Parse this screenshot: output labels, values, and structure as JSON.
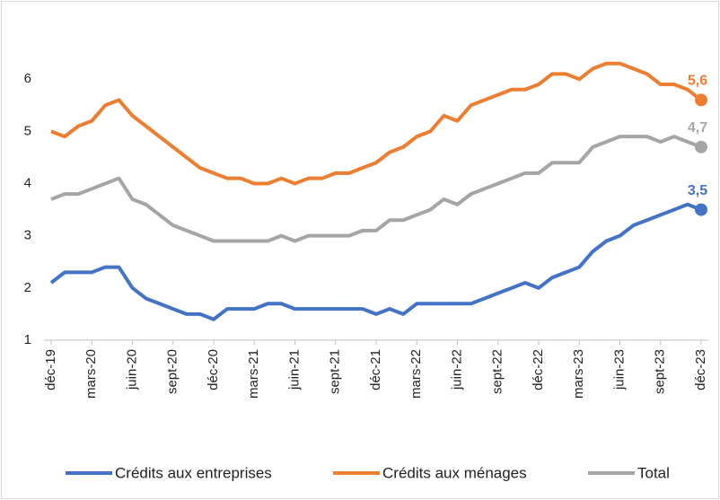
{
  "chart_data": {
    "type": "line",
    "categories": [
      "déc-19",
      null,
      null,
      "mars-20",
      null,
      null,
      "juin-20",
      null,
      null,
      "sept-20",
      null,
      null,
      "déc-20",
      null,
      null,
      "mars-21",
      null,
      null,
      "juin-21",
      null,
      null,
      "sept-21",
      null,
      null,
      "déc-21",
      null,
      null,
      "mars-22",
      null,
      null,
      "juin-22",
      null,
      null,
      "sept-22",
      null,
      null,
      "déc-22",
      null,
      null,
      "mars-23",
      null,
      null,
      "juin-23",
      null,
      null,
      "sept-23",
      null,
      null,
      "déc-23"
    ],
    "series": [
      {
        "name": "Crédits aux entreprises",
        "color": "#4472c4",
        "values": [
          2.1,
          2.3,
          2.3,
          2.3,
          2.4,
          2.4,
          2.0,
          1.8,
          1.7,
          1.6,
          1.5,
          1.5,
          1.4,
          1.6,
          1.6,
          1.6,
          1.7,
          1.7,
          1.6,
          1.6,
          1.6,
          1.6,
          1.6,
          1.6,
          1.5,
          1.6,
          1.5,
          1.7,
          1.7,
          1.7,
          1.7,
          1.7,
          1.8,
          1.9,
          2.0,
          2.1,
          2.0,
          2.2,
          2.3,
          2.4,
          2.7,
          2.9,
          3.0,
          3.2,
          3.3,
          3.4,
          3.5,
          3.6,
          3.5
        ],
        "value_labels": [
          null,
          null,
          null,
          null,
          null,
          null,
          null,
          null,
          null,
          null,
          null,
          null,
          null,
          null,
          null,
          null,
          null,
          null,
          null,
          null,
          null,
          null,
          null,
          null,
          null,
          null,
          null,
          null,
          null,
          null,
          null,
          null,
          null,
          null,
          null,
          null,
          null,
          null,
          null,
          null,
          null,
          null,
          null,
          null,
          null,
          null,
          null,
          null,
          "3,5"
        ]
      },
      {
        "name": "Crédits aux ménages",
        "color": "#ed7d31",
        "values": [
          5.0,
          4.9,
          5.1,
          5.2,
          5.5,
          5.6,
          5.3,
          5.1,
          4.9,
          4.7,
          4.5,
          4.3,
          4.2,
          4.1,
          4.1,
          4.0,
          4.0,
          4.1,
          4.0,
          4.1,
          4.1,
          4.2,
          4.2,
          4.3,
          4.4,
          4.6,
          4.7,
          4.9,
          5.0,
          5.3,
          5.2,
          5.5,
          5.6,
          5.7,
          5.8,
          5.8,
          5.9,
          6.1,
          6.1,
          6.0,
          6.2,
          6.3,
          6.3,
          6.2,
          6.1,
          5.9,
          5.9,
          5.8,
          5.6
        ],
        "value_labels": [
          null,
          null,
          null,
          null,
          null,
          null,
          null,
          null,
          null,
          null,
          null,
          null,
          null,
          null,
          null,
          null,
          null,
          null,
          null,
          null,
          null,
          null,
          null,
          null,
          null,
          null,
          null,
          null,
          null,
          null,
          null,
          null,
          null,
          null,
          null,
          null,
          null,
          null,
          null,
          null,
          null,
          null,
          null,
          null,
          null,
          null,
          null,
          null,
          "5,6"
        ]
      },
      {
        "name": "Total",
        "color": "#a5a5a5",
        "values": [
          3.7,
          3.8,
          3.8,
          3.9,
          4.0,
          4.1,
          3.7,
          3.6,
          3.4,
          3.2,
          3.1,
          3.0,
          2.9,
          2.9,
          2.9,
          2.9,
          2.9,
          3.0,
          2.9,
          3.0,
          3.0,
          3.0,
          3.0,
          3.1,
          3.1,
          3.3,
          3.3,
          3.4,
          3.5,
          3.7,
          3.6,
          3.8,
          3.9,
          4.0,
          4.1,
          4.2,
          4.2,
          4.4,
          4.4,
          4.4,
          4.7,
          4.8,
          4.9,
          4.9,
          4.9,
          4.8,
          4.9,
          4.8,
          4.7
        ],
        "value_labels": [
          null,
          null,
          null,
          null,
          null,
          null,
          null,
          null,
          null,
          null,
          null,
          null,
          null,
          null,
          null,
          null,
          null,
          null,
          null,
          null,
          null,
          null,
          null,
          null,
          null,
          null,
          null,
          null,
          null,
          null,
          null,
          null,
          null,
          null,
          null,
          null,
          null,
          null,
          null,
          null,
          null,
          null,
          null,
          null,
          null,
          null,
          null,
          null,
          "4,7"
        ]
      }
    ],
    "ylim": [
      1,
      7
    ],
    "yticks": [
      1,
      2,
      3,
      4,
      5,
      6
    ],
    "grid": false,
    "legend": "bottom"
  }
}
